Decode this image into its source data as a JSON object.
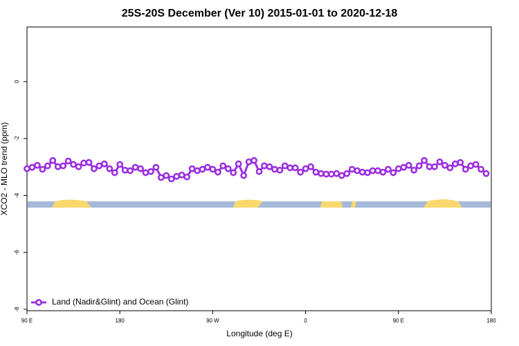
{
  "chart_data": {
    "type": "line",
    "title": "25S-20S December (Ver 10)   2015-01-01 to 2020-12-18",
    "x_label": "Longitude (deg E)",
    "y_label": "XCO2 - MLO trend (ppm)",
    "x": [
      90,
      95,
      100,
      105,
      110,
      115,
      120,
      125,
      130,
      135,
      140,
      145,
      150,
      155,
      160,
      165,
      170,
      175,
      180,
      185,
      190,
      195,
      200,
      205,
      210,
      215,
      220,
      225,
      230,
      235,
      240,
      245,
      250,
      255,
      260,
      265,
      270,
      275,
      280,
      285,
      290,
      295,
      300,
      305,
      310,
      315,
      320,
      325,
      330,
      335,
      340,
      345,
      350,
      355,
      360,
      365,
      370,
      375,
      380,
      385,
      390,
      395,
      400,
      405,
      410,
      415,
      420,
      425,
      430,
      435,
      440,
      445,
      450,
      455,
      460,
      465,
      470,
      475,
      480,
      485,
      490,
      495,
      500,
      505,
      510,
      515,
      520,
      525,
      530,
      535
    ],
    "series": [
      {
        "name": "Land (Nadir&Glint) and Ocean (Glint)",
        "color": "#9b2fe0",
        "values": [
          -3.06,
          -3.01,
          -2.94,
          -3.08,
          -2.96,
          -2.77,
          -2.99,
          -2.96,
          -2.79,
          -2.91,
          -2.99,
          -2.86,
          -2.84,
          -3.06,
          -2.96,
          -2.89,
          -3.06,
          -3.2,
          -2.91,
          -3.11,
          -3.13,
          -3.01,
          -3.06,
          -3.2,
          -3.16,
          -3.01,
          -3.37,
          -3.3,
          -3.42,
          -3.33,
          -3.28,
          -3.35,
          -3.06,
          -3.13,
          -3.08,
          -3.01,
          -3.08,
          -3.18,
          -2.96,
          -3.06,
          -3.2,
          -2.89,
          -3.3,
          -2.82,
          -2.77,
          -3.16,
          -2.96,
          -2.99,
          -3.08,
          -3.11,
          -2.96,
          -3.03,
          -3.03,
          -3.18,
          -3.06,
          -2.99,
          -3.18,
          -3.23,
          -3.25,
          -3.25,
          -3.23,
          -3.3,
          -3.23,
          -3.08,
          -3.13,
          -3.18,
          -3.2,
          -3.13,
          -3.13,
          -3.18,
          -3.08,
          -3.2,
          -3.06,
          -3.01,
          -2.94,
          -3.11,
          -2.96,
          -2.77,
          -2.99,
          -2.99,
          -2.82,
          -2.94,
          -3.03,
          -2.89,
          -2.84,
          -3.08,
          -2.96,
          -2.91,
          -3.08,
          -3.23
        ]
      }
    ],
    "xlim": [
      90,
      540
    ],
    "xticks": [
      {
        "value": 90,
        "label": "90 E"
      },
      {
        "value": 180,
        "label": "180"
      },
      {
        "value": 270,
        "label": "90 W"
      },
      {
        "value": 360,
        "label": "0"
      },
      {
        "value": 450,
        "label": "90 E"
      },
      {
        "value": 540,
        "label": "180"
      }
    ],
    "ylim": [
      -8.05,
      1.92
    ],
    "yticks": [
      0,
      -2,
      -4,
      -6,
      -8
    ],
    "legend": "bottom-left"
  }
}
